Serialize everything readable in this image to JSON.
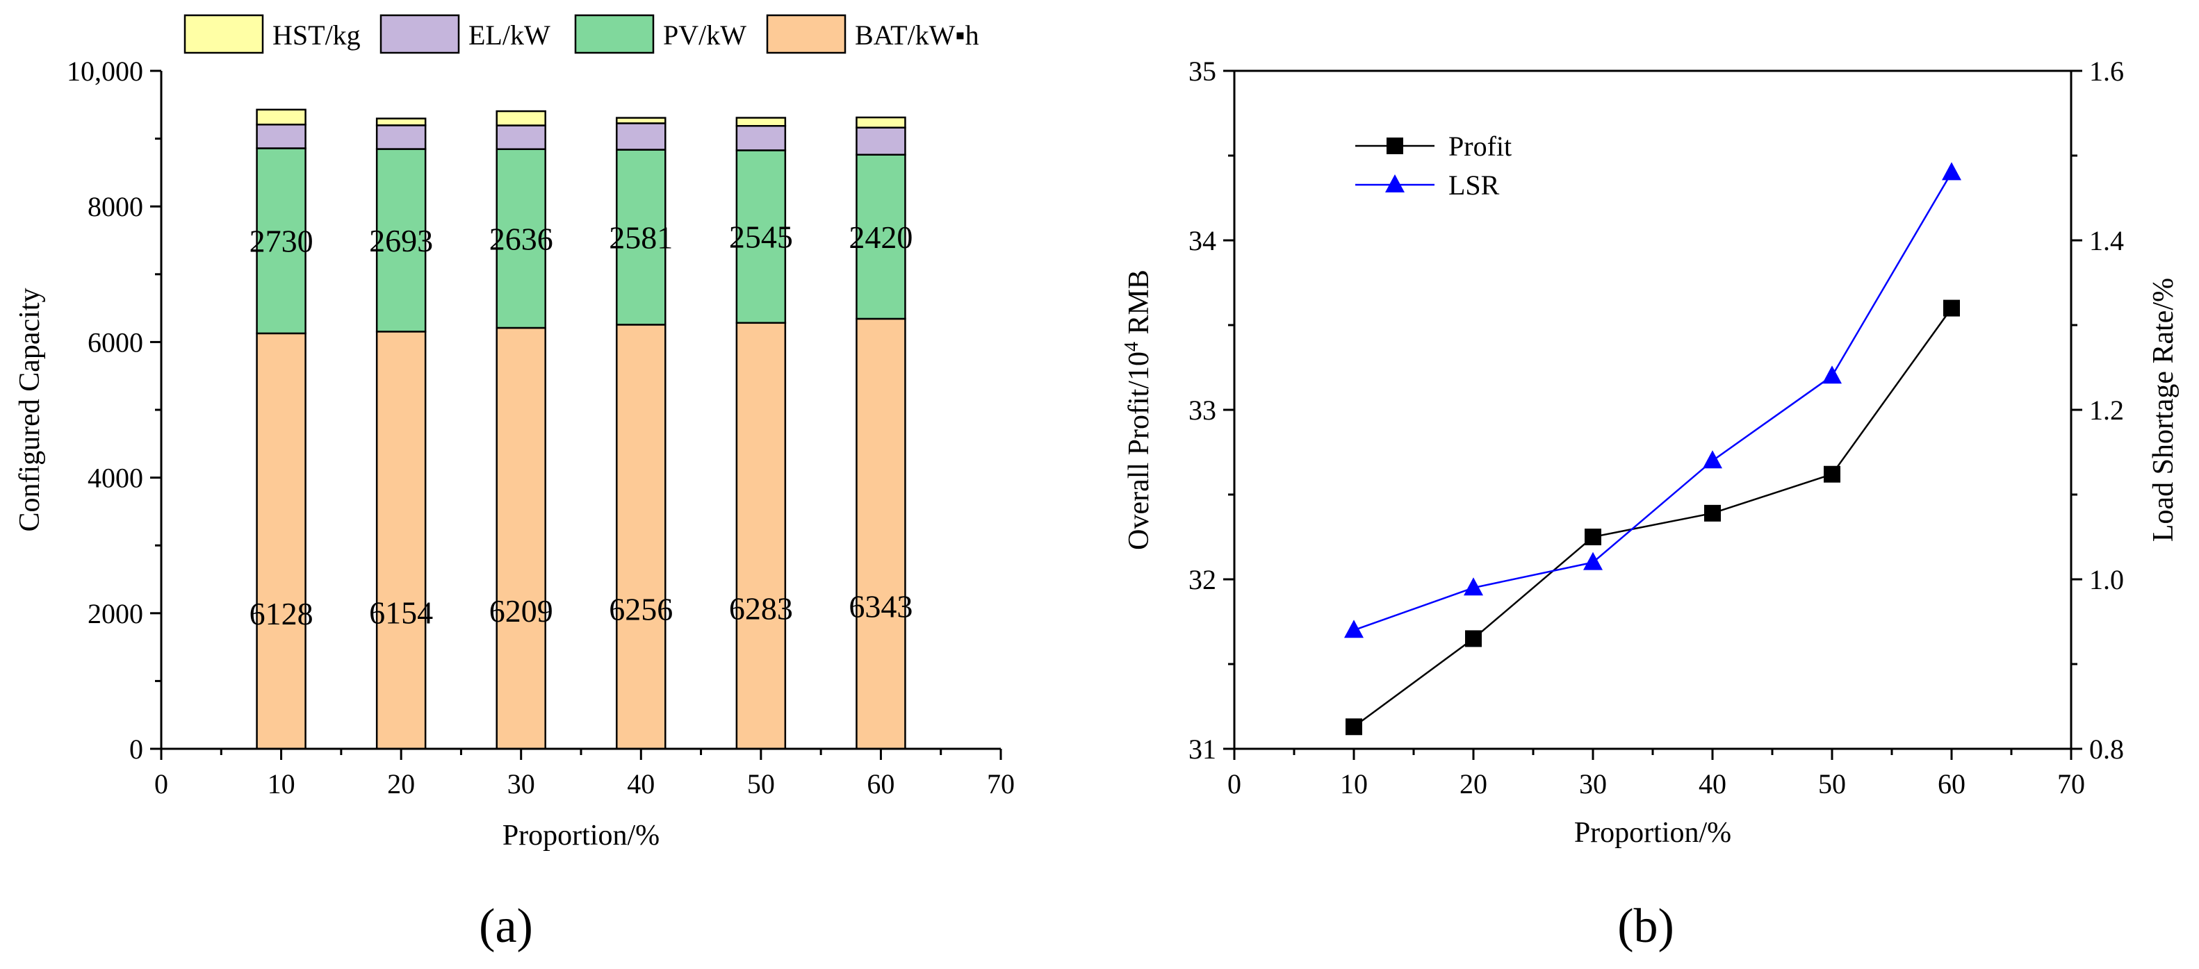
{
  "chart_data": [
    {
      "panel": "(a)",
      "type": "bar",
      "stacked": true,
      "xlabel": "Proportion/%",
      "ylabel": "Configured Capacity",
      "x": [
        10,
        20,
        30,
        40,
        50,
        60
      ],
      "xlim": [
        0,
        70
      ],
      "xticks": [
        "0",
        "10",
        "20",
        "30",
        "40",
        "50",
        "60",
        "70"
      ],
      "ylim": [
        0,
        10000
      ],
      "yticks": [
        "0",
        "2000",
        "4000",
        "6000",
        "8000",
        "10,000"
      ],
      "legend_position": "top",
      "series": [
        {
          "name": "BAT/kW▪h",
          "color": "#fdca96",
          "values": [
            6128,
            6154,
            6209,
            6256,
            6283,
            6343
          ],
          "labels": [
            "6128",
            "6154",
            "6209",
            "6256",
            "6283",
            "6343"
          ]
        },
        {
          "name": "PV/kW",
          "color": "#80d89c",
          "values": [
            2730,
            2693,
            2636,
            2581,
            2545,
            2420
          ],
          "labels": [
            "2730",
            "2693",
            "2636",
            "2581",
            "2545",
            "2420"
          ]
        },
        {
          "name": "EL/kW",
          "color": "#c5b5dc",
          "values": [
            350,
            350,
            350,
            390,
            360,
            400
          ]
        },
        {
          "name": "HST/kg",
          "color": "#ffffa5",
          "values": [
            220,
            100,
            210,
            80,
            120,
            150
          ]
        }
      ],
      "legend_order": [
        "HST/kg",
        "EL/kW",
        "PV/kW",
        "BAT/kW▪h"
      ],
      "grid": false
    },
    {
      "panel": "(b)",
      "type": "line",
      "xlabel": "Proportion/%",
      "ylabel": "Overall Profit/10⁴ RMB",
      "ylabel_parts": [
        "Overall Profit/10",
        "4",
        " RMB"
      ],
      "y2label": "Load Shortage Rate/%",
      "x": [
        10,
        20,
        30,
        40,
        50,
        60
      ],
      "xlim": [
        0,
        70
      ],
      "xticks": [
        "0",
        "10",
        "20",
        "30",
        "40",
        "50",
        "60",
        "70"
      ],
      "ylim": [
        31,
        35
      ],
      "yticks": [
        "31",
        "32",
        "33",
        "34",
        "35"
      ],
      "y2lim": [
        0.8,
        1.6
      ],
      "y2ticks": [
        "0.8",
        "1.0",
        "1.2",
        "1.4",
        "1.6"
      ],
      "legend_position": "top-left",
      "series": [
        {
          "name": "Profit",
          "axis": "left",
          "color": "#000000",
          "marker": "square",
          "values": [
            31.13,
            31.65,
            32.25,
            32.39,
            32.62,
            33.6
          ]
        },
        {
          "name": "LSR",
          "axis": "right",
          "color": "#0000ff",
          "marker": "triangle",
          "values": [
            0.94,
            0.99,
            1.02,
            1.14,
            1.24,
            1.48
          ]
        }
      ],
      "grid": false
    }
  ]
}
